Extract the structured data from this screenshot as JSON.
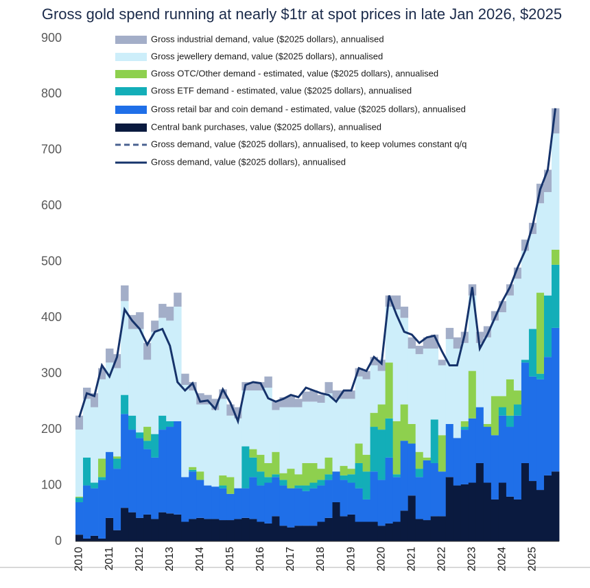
{
  "chart_data": {
    "type": "bar",
    "stacked": true,
    "title": "Gross gold spend running at nearly $1tr at spot prices in late Jan 2026, $2025",
    "categories": [
      "2010",
      null,
      null,
      null,
      "2011",
      null,
      null,
      null,
      "2012",
      null,
      null,
      null,
      "2013",
      null,
      null,
      null,
      "2014",
      null,
      null,
      null,
      "2015",
      null,
      null,
      null,
      "2016",
      null,
      null,
      null,
      "2017",
      null,
      null,
      null,
      "2018",
      null,
      null,
      null,
      "2019",
      null,
      null,
      null,
      "2020",
      null,
      null,
      null,
      "2021",
      null,
      null,
      null,
      "2022",
      null,
      null,
      null,
      "2023",
      null,
      null,
      null,
      "2024",
      null,
      null,
      null,
      "2025",
      null,
      null,
      null
    ],
    "ylim": [
      0,
      900
    ],
    "yticks": [
      0,
      100,
      200,
      300,
      400,
      500,
      600,
      700,
      800,
      900
    ],
    "grid": false,
    "series": [
      {
        "name": "Gross industrial demand, value ($2025 dollars), annualised",
        "type": "bar",
        "color": "#a3aec8",
        "values": [
          25,
          20,
          25,
          20,
          25,
          25,
          28,
          25,
          30,
          30,
          20,
          25,
          25,
          25,
          20,
          15,
          20,
          17,
          20,
          17,
          20,
          20,
          15,
          15,
          15,
          20,
          15,
          18,
          20,
          15,
          18,
          20,
          14,
          20,
          15,
          15,
          15,
          15,
          15,
          15,
          20,
          20,
          25,
          20,
          20,
          15,
          20,
          25,
          10,
          20,
          20,
          20,
          20,
          20,
          20,
          17,
          20,
          20,
          20,
          20,
          20,
          35,
          40,
          45
        ]
      },
      {
        "name": "Gross jewellery demand, value ($2025 dollars), annualised",
        "type": "bar",
        "color": "#cdeefa",
        "values": [
          120,
          105,
          135,
          142,
          160,
          158,
          168,
          155,
          185,
          120,
          183,
          175,
          180,
          205,
          165,
          137,
          120,
          145,
          137,
          137,
          110,
          125,
          100,
          105,
          115,
          135,
          75,
          118,
          110,
          120,
          110,
          110,
          118,
          115,
          130,
          120,
          125,
          120,
          135,
          85,
          60,
          100,
          200,
          155,
          135,
          175,
          195,
          127,
          125,
          152,
          160,
          140,
          135,
          115,
          155,
          135,
          150,
          150,
          200,
          195,
          170,
          160,
          185,
          208
        ]
      },
      {
        "name": "Gross OTC/Other demand - estimated, value ($2025 dollars), annualised",
        "type": "bar",
        "color": "#8ed04e",
        "values": [
          2,
          0,
          0,
          33,
          0,
          4,
          0,
          0,
          0,
          25,
          0,
          0,
          0,
          0,
          0,
          5,
          15,
          0,
          0,
          18,
          30,
          0,
          0,
          15,
          30,
          25,
          40,
          12,
          35,
          20,
          40,
          35,
          20,
          30,
          0,
          17,
          10,
          35,
          30,
          25,
          45,
          100,
          95,
          65,
          35,
          30,
          5,
          0,
          65,
          0,
          0,
          10,
          85,
          0,
          5,
          70,
          20,
          65,
          25,
          0,
          0,
          145,
          0,
          27
        ]
      },
      {
        "name": "Gross ETF demand - estimated, value ($2025 dollars), annualised",
        "type": "bar",
        "color": "#13aeb8",
        "values": [
          8,
          50,
          10,
          5,
          0,
          18,
          34,
          25,
          10,
          15,
          42,
          25,
          10,
          0,
          0,
          3,
          0,
          0,
          0,
          5,
          0,
          0,
          75,
          35,
          25,
          10,
          5,
          10,
          0,
          5,
          10,
          10,
          10,
          10,
          0,
          8,
          15,
          45,
          50,
          80,
          90,
          70,
          5,
          0,
          0,
          15,
          0,
          78,
          0,
          0,
          0,
          5,
          0,
          0,
          0,
          0,
          15,
          20,
          20,
          5,
          85,
          10,
          110,
          113
        ]
      },
      {
        "name": "Gross retail bar and coin demand - estimated, value ($2025 dollars), annualised",
        "type": "bar",
        "color": "#1f6fe8",
        "values": [
          58,
          95,
          85,
          105,
          118,
          110,
          168,
          148,
          143,
          117,
          110,
          148,
          155,
          167,
          80,
          85,
          68,
          60,
          58,
          57,
          47,
          55,
          53,
          75,
          65,
          73,
          70,
          72,
          70,
          67,
          62,
          67,
          65,
          68,
          55,
          65,
          57,
          60,
          40,
          90,
          82,
          118,
          80,
          125,
          93,
          75,
          107,
          95,
          80,
          95,
          85,
          98,
          115,
          100,
          100,
          115,
          120,
          125,
          150,
          180,
          187,
          198,
          212,
          257
        ]
      },
      {
        "name": "Central bank purchases, value ($2025 dollars), annualised",
        "type": "bar",
        "color": "#0a1a3f",
        "values": [
          12,
          5,
          10,
          5,
          42,
          20,
          60,
          52,
          42,
          48,
          40,
          52,
          50,
          48,
          35,
          40,
          42,
          40,
          40,
          38,
          38,
          40,
          42,
          40,
          35,
          32,
          45,
          28,
          25,
          28,
          28,
          28,
          35,
          42,
          70,
          45,
          48,
          35,
          35,
          35,
          28,
          32,
          35,
          55,
          82,
          40,
          38,
          45,
          45,
          115,
          100,
          102,
          105,
          140,
          105,
          75,
          105,
          80,
          75,
          140,
          108,
          92,
          118,
          125
        ]
      },
      {
        "name": "Gross demand, value ($2025 dollars), annualised, to keep volumes constant q/q",
        "type": "line",
        "line_style": "dashed",
        "color": "#4a6290",
        "values": [
          null,
          null,
          null,
          null,
          null,
          null,
          null,
          null,
          null,
          null,
          null,
          null,
          null,
          null,
          null,
          null,
          null,
          null,
          null,
          null,
          null,
          null,
          null,
          null,
          null,
          null,
          null,
          null,
          null,
          null,
          null,
          null,
          null,
          null,
          null,
          null,
          null,
          null,
          null,
          null,
          null,
          null,
          null,
          null,
          null,
          null,
          null,
          null,
          null,
          null,
          null,
          null,
          null,
          null,
          null,
          null,
          null,
          null,
          null,
          null,
          null,
          null,
          null,
          null
        ]
      },
      {
        "name": "Gross demand, value ($2025 dollars), annualised",
        "type": "line",
        "line_style": "solid",
        "color": "#16336b",
        "values": [
          222,
          265,
          260,
          315,
          295,
          330,
          415,
          395,
          380,
          352,
          375,
          380,
          350,
          285,
          270,
          283,
          250,
          252,
          237,
          272,
          248,
          215,
          280,
          285,
          283,
          256,
          250,
          255,
          262,
          258,
          275,
          270,
          265,
          262,
          250,
          270,
          270,
          310,
          305,
          330,
          318,
          440,
          405,
          375,
          370,
          355,
          365,
          368,
          340,
          315,
          315,
          370,
          455,
          345,
          370,
          400,
          430,
          455,
          490,
          520,
          565,
          630,
          665,
          775
        ]
      }
    ]
  }
}
